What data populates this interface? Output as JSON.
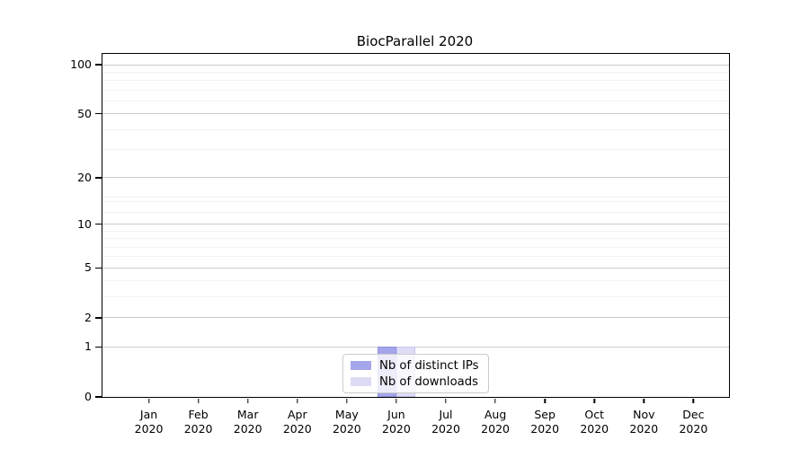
{
  "title": "BiocParallel 2020",
  "colors": {
    "axis": "#000000",
    "grid_major": "#cccccc",
    "grid_minor": "#f2f2f2",
    "series_fill": [
      "#a5a5ec",
      "#dcdcf6"
    ],
    "series_edge": [
      "#9191e2",
      "#c6c6ee"
    ],
    "legend_border": "#cbcbcb"
  },
  "legend": {
    "items": [
      {
        "label": "Nb of distinct IPs"
      },
      {
        "label": "Nb of downloads"
      }
    ]
  },
  "chart_data": {
    "type": "bar",
    "title": "BiocParallel 2020",
    "categories": [
      "Jan 2020",
      "Feb 2020",
      "Mar 2020",
      "Apr 2020",
      "May 2020",
      "Jun 2020",
      "Jul 2020",
      "Aug 2020",
      "Sep 2020",
      "Oct 2020",
      "Nov 2020",
      "Dec 2020"
    ],
    "x_tick_year": "2020",
    "series": [
      {
        "name": "Nb of distinct IPs",
        "color": "#a5a5ec",
        "values": [
          0,
          0,
          0,
          0,
          0,
          1,
          0,
          0,
          0,
          0,
          0,
          0
        ]
      },
      {
        "name": "Nb of downloads",
        "color": "#dcdcf6",
        "values": [
          0,
          0,
          0,
          0,
          0,
          1,
          0,
          0,
          0,
          0,
          0,
          0
        ]
      }
    ],
    "xlabel": "",
    "ylabel": "",
    "ylim": [
      0,
      100
    ],
    "y_scale": "log10(1+v)",
    "y_major_ticks": [
      0,
      1,
      2,
      5,
      10,
      20,
      50,
      100
    ],
    "y_tick_labels": [
      "0",
      "1",
      "2",
      "5",
      "10",
      "20",
      "50",
      "100"
    ],
    "y_minor_ticks": [
      3,
      4,
      6,
      7,
      8,
      9,
      12,
      14,
      15,
      30,
      40,
      60,
      70,
      80,
      90
    ],
    "grid": true,
    "legend_position": "lower center"
  }
}
